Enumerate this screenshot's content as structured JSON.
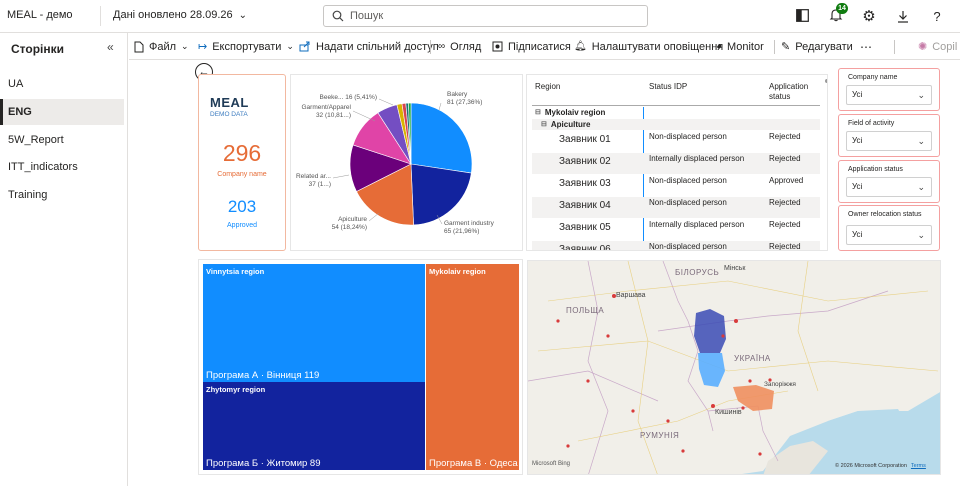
{
  "app": {
    "title": "MEAL - демо",
    "refreshed": "Дані оновлено 28.09.26",
    "search_placeholder": "Пошук",
    "notifications_count": "14"
  },
  "sidebar": {
    "title": "Сторінки",
    "items": [
      {
        "label": "UA",
        "active": false
      },
      {
        "label": "ENG",
        "active": true
      },
      {
        "label": "5W_Report",
        "active": false
      },
      {
        "label": "ITT_indicators",
        "active": false
      },
      {
        "label": "Training",
        "active": false
      }
    ]
  },
  "toolbar": {
    "file": "Файл",
    "export": "Експортувати",
    "share": "Надати спільний доступ",
    "review": "Огляд",
    "subscribe": "Підписатися",
    "alerts": "Налаштувати оповіщення",
    "monitor": "Monitor",
    "edit": "Редагувати",
    "copilot": "Copil"
  },
  "kpi": {
    "logo": "MEAL",
    "logo_sub": "DEMO DATA",
    "company_value": "296",
    "company_label": "Company name",
    "approved_value": "203",
    "approved_label": "Approved"
  },
  "chart_data": {
    "type": "pie",
    "slices": [
      {
        "label": "Bakery",
        "value": 81,
        "value_text": "81 (27,36%)",
        "color": "#118DFF"
      },
      {
        "label": "Garment industry",
        "value": 65,
        "value_text": "65 (21,96%)",
        "color": "#12239E"
      },
      {
        "label": "Apiculture",
        "value": 54,
        "value_text": "54 (18,24%)",
        "color": "#E66C37"
      },
      {
        "label": "Related ar...",
        "value": 37,
        "value_text": "37 (1...)",
        "color": "#6B007B"
      },
      {
        "label": "Garment/Apparel",
        "value": 32,
        "value_text": "32 (10,81...)",
        "color": "#E044A7"
      },
      {
        "label": "Beeke...",
        "value": 16,
        "value_text": "16 (5,41%)",
        "color": "#744EC2"
      },
      {
        "label": "",
        "value": 4,
        "value_text": "",
        "color": "#D9B300"
      },
      {
        "label": "",
        "value": 3,
        "value_text": "",
        "color": "#D64550"
      },
      {
        "label": "",
        "value": 2,
        "value_text": "",
        "color": "#197278"
      },
      {
        "label": "",
        "value": 2,
        "value_text": "",
        "color": "#1AAB40"
      }
    ]
  },
  "table": {
    "headers": [
      "Region",
      "Status IDP",
      "Application status"
    ],
    "group1": "Mykolaiv region",
    "group2": "Apiculture",
    "rows": [
      {
        "name": "Заявник 01",
        "status": "Non-displaced person",
        "app": "Rejected"
      },
      {
        "name": "Заявник 02",
        "status": "Internally displaced person",
        "app": "Rejected"
      },
      {
        "name": "Заявник 03",
        "status": "Non-displaced person",
        "app": "Approved"
      },
      {
        "name": "Заявник 04",
        "status": "Non-displaced person",
        "app": "Rejected"
      },
      {
        "name": "Заявник 05",
        "status": "Internally displaced person",
        "app": "Rejected"
      },
      {
        "name": "Заявник 06",
        "status": "Non-displaced person",
        "app": "Rejected"
      }
    ]
  },
  "slicers": [
    {
      "title": "Company name",
      "value": "Усі"
    },
    {
      "title": "Field of activity",
      "value": "Усі"
    },
    {
      "title": "Application status",
      "value": "Усі"
    },
    {
      "title": "Owner relocation status",
      "value": "Усі"
    }
  ],
  "treemap": {
    "regions": [
      {
        "name": "Vinnytsia region",
        "label": "Програма А · Вінниця 119",
        "value": 119,
        "color": "#118DFF"
      },
      {
        "name": "Zhytomyr region",
        "label": "Програма Б · Житомир 89",
        "value": 89,
        "color": "#12239E"
      },
      {
        "name": "Mykolaiv region",
        "label": "Програма В · Одеса",
        "value": 81,
        "color": "#E66C37"
      }
    ]
  },
  "map": {
    "labels": [
      "БІЛОРУСЬ",
      "ПОЛЬЩА",
      "Варшава",
      "УКРАЇНА",
      "РУМУНІЯ",
      "Кишинів",
      "Запоріжжя",
      "Мінськ"
    ],
    "copyright": "© 2026 Microsoft Corporation",
    "terms": "Terms",
    "bing": "Microsoft Bing"
  }
}
